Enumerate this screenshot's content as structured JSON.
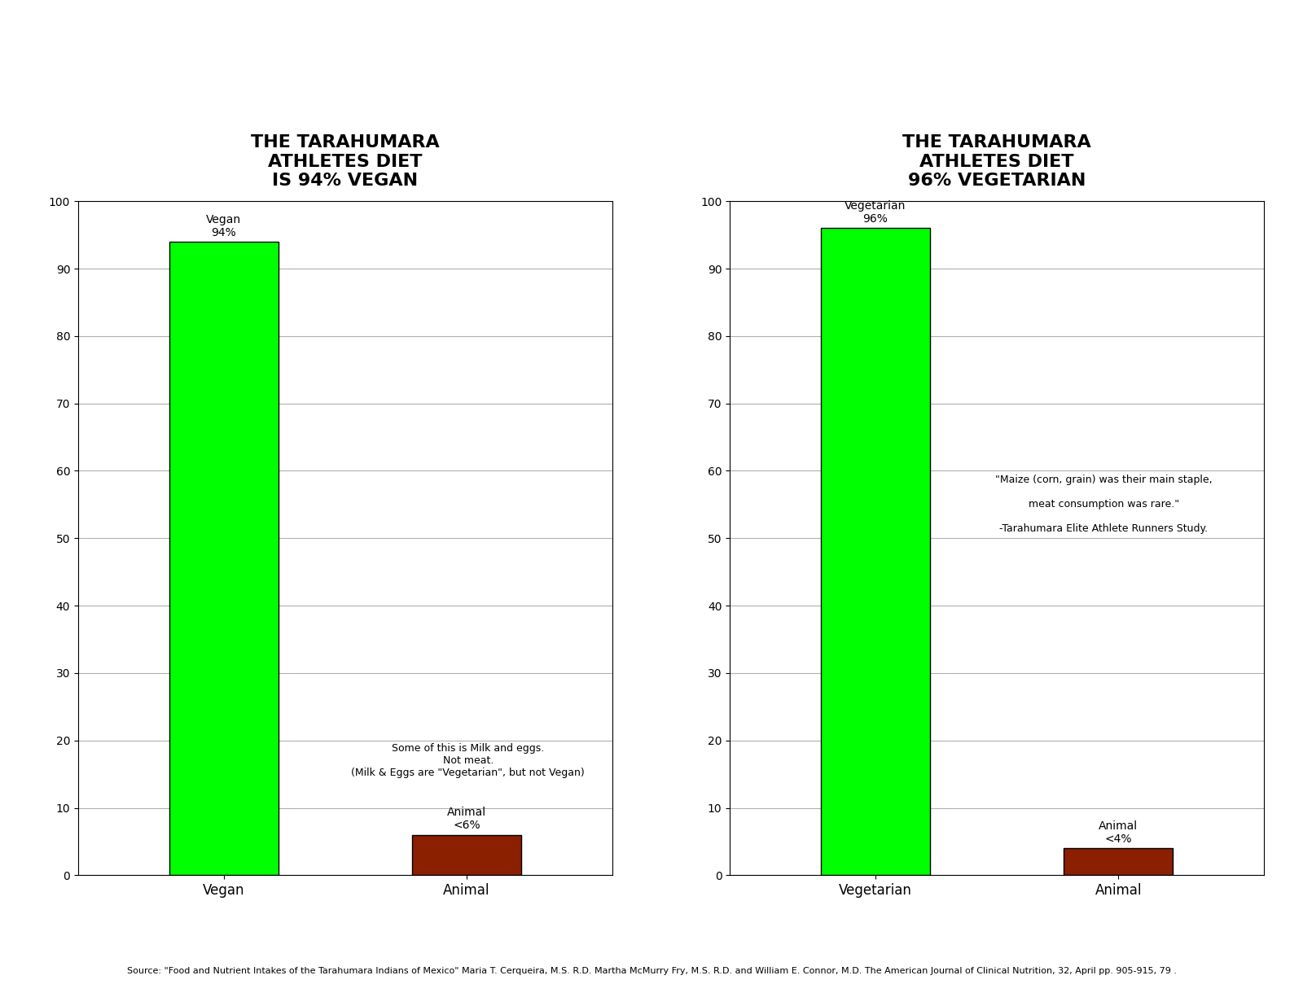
{
  "chart_data": [
    {
      "type": "bar",
      "title": "THE TARAHUMARA\nATHLETES DIET\nIS 94% VEGAN",
      "categories": [
        "Vegan",
        "Animal"
      ],
      "values": [
        94,
        6
      ],
      "value_labels": [
        "Vegan\n94%",
        "Animal\n<6%"
      ],
      "data_labels": true,
      "colors": [
        "#00ff00",
        "#8b2000"
      ],
      "ylim": [
        0,
        100
      ],
      "yticks": [
        0,
        10,
        20,
        30,
        40,
        50,
        60,
        70,
        80,
        90,
        100
      ],
      "grid": true,
      "annotations": [
        "Some of this is Milk and eggs.\nNot meat.\n(Milk & Eggs are \"Vegetarian\", but not Vegan)"
      ]
    },
    {
      "type": "bar",
      "title": "THE TARAHUMARA\nATHLETES DIET\n96% VEGETARIAN",
      "categories": [
        "Vegetarian",
        "Animal"
      ],
      "values": [
        96,
        4
      ],
      "value_labels": [
        "Vegetarian\n96%",
        "Animal\n<4%"
      ],
      "data_labels": true,
      "colors": [
        "#00ff00",
        "#8b2000"
      ],
      "ylim": [
        0,
        100
      ],
      "yticks": [
        0,
        10,
        20,
        30,
        40,
        50,
        60,
        70,
        80,
        90,
        100
      ],
      "grid": true,
      "annotations": [
        "\"Maize (corn, grain) was their main staple,\n\nmeat consumption was rare.\"\n\n-Tarahumara Elite Athlete Runners Study."
      ]
    }
  ],
  "source": "Source: \"Food and Nutrient Intakes of the Tarahumara Indians of Mexico\" Maria T. Cerqueira, M.S. R.D. Martha McMurry Fry, M.S. R.D. and William E. Connor, M.D. The American Journal of Clinical Nutrition, 32, April pp. 905-915, 79 ."
}
